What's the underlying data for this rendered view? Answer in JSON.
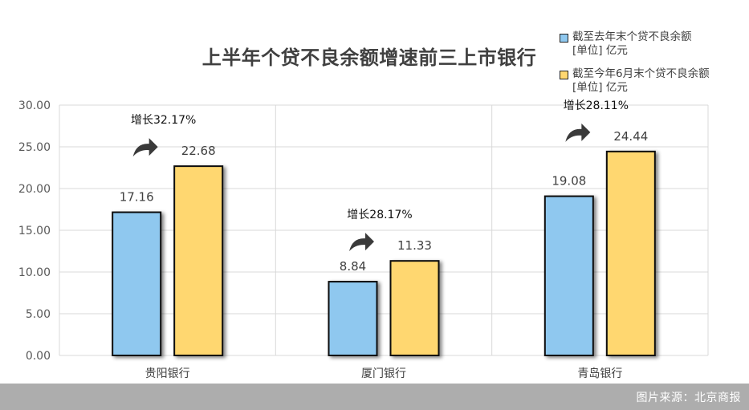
{
  "chart_data": {
    "type": "bar",
    "title": "上半年个贷不良余额增速前三上市银行",
    "categories": [
      "贵阳银行",
      "厦门银行",
      "青岛银行"
    ],
    "series": [
      {
        "name": "截至去年末个贷不良余额[单位] 亿元",
        "name_line1": "截至去年末个贷不良余额",
        "name_line2": "[单位] 亿元",
        "color": "#8fc8ef",
        "values": [
          17.16,
          8.84,
          19.08
        ]
      },
      {
        "name": "截至今年6月末个贷不良余额[单位] 亿元",
        "name_line1": "截至今年6月末个贷不良余额",
        "name_line2": "[单位] 亿元",
        "color": "#ffd770",
        "values": [
          22.68,
          11.33,
          24.44
        ]
      }
    ],
    "value_labels": [
      [
        "17.16",
        "22.68"
      ],
      [
        "8.84",
        "11.33"
      ],
      [
        "19.08",
        "24.44"
      ]
    ],
    "growth_labels": [
      "增长32.17%",
      "增长28.17%",
      "增长28.11%"
    ],
    "ylim": [
      0,
      30
    ],
    "yticks": [
      "0.00",
      "5.00",
      "10.00",
      "15.00",
      "20.00",
      "25.00",
      "30.00"
    ],
    "xlabel": "",
    "ylabel": "",
    "grid": true,
    "legend_position": "top-right"
  },
  "source": "图片来源：北京商报",
  "colors": {
    "axis": "#d9d9d9",
    "text": "#404040",
    "arrow": "#3a3a3a",
    "footer_bg": "#adadad"
  }
}
